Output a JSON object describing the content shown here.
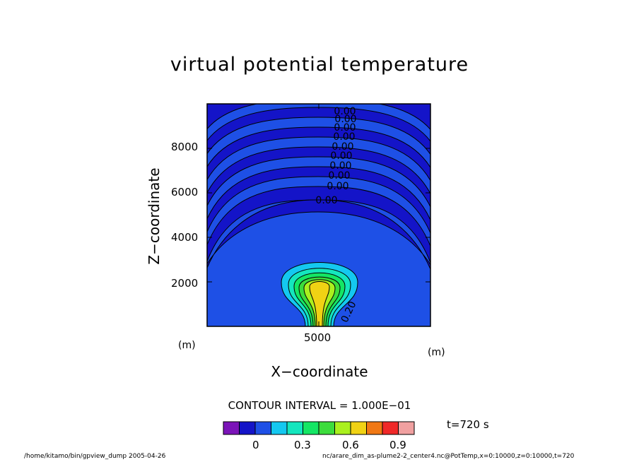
{
  "chart_data": {
    "type": "heatmap",
    "title": "virtual potential temperature",
    "xlabel": "X−coordinate",
    "ylabel": "Z−coordinate",
    "x_unit": "(m)",
    "y_unit": "(m)",
    "xlim": [
      0,
      10000
    ],
    "ylim": [
      0,
      10000
    ],
    "x_ticks": [
      5000
    ],
    "y_ticks": [
      2000,
      4000,
      6000,
      8000
    ],
    "contour_interval_label": "CONTOUR INTERVAL = 1.000E−01",
    "contour_labels": [
      "0.00",
      "0.00",
      "0.00",
      "0.00",
      "0.00",
      "0.00",
      "0.00",
      "0.00",
      "0.00",
      "0.00",
      "0.20"
    ],
    "colorbar": {
      "colors": [
        "#7b14b8",
        "#1414c8",
        "#1e50e6",
        "#14c8f0",
        "#14e6be",
        "#14e664",
        "#3cdc3c",
        "#aaf01e",
        "#f0d214",
        "#f07814",
        "#f02828",
        "#f0a0a0"
      ],
      "tick_values": [
        0,
        0.3,
        0.6,
        0.9
      ],
      "tick_labels": [
        "0",
        "0.3",
        "0.6",
        "0.9"
      ]
    },
    "time_label": "t=720 s"
  },
  "footer": {
    "left": "/home/kitamo/bin/gpview_dump  2005-04-26",
    "right": "nc/arare_dim_as-plume2-2_center4.nc@PotTemp,x=0:10000,z=0:10000,t=720"
  }
}
